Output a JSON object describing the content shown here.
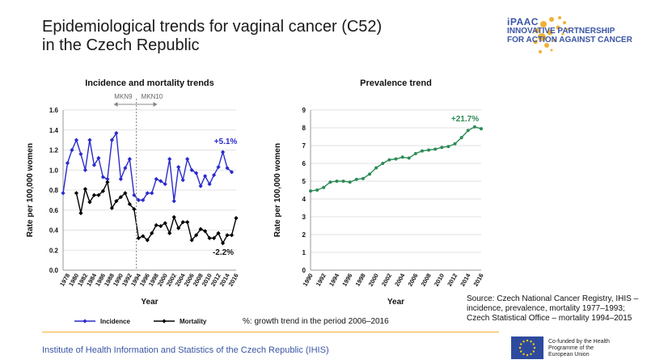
{
  "title": {
    "line1": "Epidemiological trends for vaginal cancer (C52)",
    "line2": "in the Czech Republic"
  },
  "logo": {
    "brand": "iPAAC",
    "line1": "INNOVATIVE PARTNERSHIP",
    "line2": "FOR ACTION AGAINST CANCER"
  },
  "chart_data": [
    {
      "type": "line",
      "title": "Incidence and mortality trends",
      "xlabel": "Year",
      "ylabel": "Rate per 100,000 women",
      "ylim": [
        0,
        1.6
      ],
      "yticks": [
        "0.0",
        "0.2",
        "0.4",
        "0.6",
        "0.8",
        "1.0",
        "1.2",
        "1.4",
        "1.6"
      ],
      "xticks": [
        "1978",
        "1980",
        "1982",
        "1984",
        "1986",
        "1988",
        "1990",
        "1992",
        "1994",
        "1996",
        "1998",
        "2000",
        "2002",
        "2004",
        "2006",
        "2008",
        "2010",
        "2012",
        "2014",
        "2016"
      ],
      "x": [
        1977,
        1978,
        1979,
        1980,
        1981,
        1982,
        1983,
        1984,
        1985,
        1986,
        1987,
        1988,
        1989,
        1990,
        1991,
        1992,
        1993,
        1994,
        1995,
        1996,
        1997,
        1998,
        1999,
        2000,
        2001,
        2002,
        2003,
        2004,
        2005,
        2006,
        2007,
        2008,
        2009,
        2010,
        2011,
        2012,
        2013,
        2014,
        2015,
        2016
      ],
      "series": [
        {
          "name": "Incidence",
          "color": "#2a2acc",
          "values": [
            0.77,
            1.07,
            1.2,
            1.3,
            1.16,
            1.0,
            1.3,
            1.05,
            1.12,
            0.93,
            0.91,
            1.3,
            1.37,
            0.91,
            1.02,
            1.11,
            0.75,
            0.7,
            0.7,
            0.77,
            0.77,
            0.91,
            0.89,
            0.86,
            1.11,
            0.69,
            1.03,
            0.9,
            1.11,
            1.0,
            0.97,
            0.84,
            0.94,
            0.86,
            0.95,
            1.03,
            1.18,
            1.02,
            0.98,
            null
          ],
          "trend_label": "+5.1%"
        },
        {
          "name": "Mortality",
          "color": "#000000",
          "values": [
            null,
            null,
            null,
            0.77,
            0.57,
            0.81,
            0.68,
            0.75,
            0.75,
            0.79,
            0.88,
            0.62,
            0.69,
            0.73,
            0.77,
            0.66,
            0.61,
            0.32,
            0.34,
            0.3,
            0.37,
            0.45,
            0.44,
            0.47,
            0.37,
            0.53,
            0.42,
            0.48,
            0.48,
            0.3,
            0.35,
            0.41,
            0.39,
            0.32,
            0.32,
            0.37,
            0.27,
            0.35,
            0.35,
            0.52
          ],
          "trend_label": "-2.2%"
        }
      ],
      "annotations": {
        "left": "MKN9",
        "right": "MKN10",
        "divider_year": 1993.5
      }
    },
    {
      "type": "line",
      "title": "Prevalence trend",
      "xlabel": "Year",
      "ylabel": "Rate per 100,000 women",
      "ylim": [
        0,
        9
      ],
      "yticks": [
        "0",
        "1",
        "2",
        "3",
        "4",
        "5",
        "6",
        "7",
        "8",
        "9"
      ],
      "xticks": [
        "1990",
        "1992",
        "1994",
        "1996",
        "1998",
        "2000",
        "2002",
        "2004",
        "2006",
        "2008",
        "2010",
        "2012",
        "2014",
        "2016"
      ],
      "x": [
        1990,
        1991,
        1992,
        1993,
        1994,
        1995,
        1996,
        1997,
        1998,
        1999,
        2000,
        2001,
        2002,
        2003,
        2004,
        2005,
        2006,
        2007,
        2008,
        2009,
        2010,
        2011,
        2012,
        2013,
        2014,
        2015,
        2016
      ],
      "series": [
        {
          "name": "",
          "color": "#2e8b57",
          "values": [
            4.45,
            4.5,
            4.65,
            4.95,
            5.0,
            5.0,
            4.95,
            5.1,
            5.15,
            5.4,
            5.75,
            6.0,
            6.2,
            6.25,
            6.35,
            6.3,
            6.55,
            6.7,
            6.75,
            6.8,
            6.9,
            6.95,
            7.1,
            7.45,
            7.85,
            8.05,
            7.95
          ],
          "trend_label": "+21.7%"
        }
      ]
    }
  ],
  "legend": {
    "incidence": "Incidence",
    "mortality": "Mortality",
    "note": "%: growth trend in the period 2006–2016"
  },
  "source": "Source: Czech National Cancer Registry, IHIS – incidence, prevalence, mortality 1977–1993; Czech Statistical Office – mortality 1994–2015",
  "footer": "Institute of Health Information and Statistics of the Czech Republic (IHIS)",
  "eu_text": "Co-funded by the Health Programme of the European Union",
  "colors": {
    "accent": "#f2b134",
    "brand": "#3a55a4"
  }
}
